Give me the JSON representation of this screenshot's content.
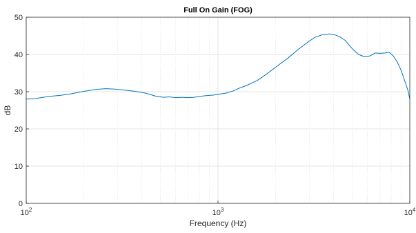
{
  "chart_data": {
    "type": "line",
    "title": "Full On Gain (FOG)",
    "xlabel": "Frequency (Hz)",
    "ylabel": "dB",
    "x_scale": "log",
    "xlim": [
      100,
      10000
    ],
    "ylim": [
      0,
      50
    ],
    "x_ticks": [
      {
        "value": 100,
        "base": "10",
        "exp": "2"
      },
      {
        "value": 1000,
        "base": "10",
        "exp": "3"
      },
      {
        "value": 10000,
        "base": "10",
        "exp": "4"
      }
    ],
    "y_ticks": [
      "0",
      "10",
      "20",
      "30",
      "40",
      "50"
    ],
    "grid": true,
    "series": [
      {
        "color": "#0072BD",
        "x": [
          100,
          110,
          120,
          130,
          150,
          170,
          200,
          230,
          260,
          290,
          330,
          370,
          420,
          480,
          520,
          560,
          600,
          650,
          700,
          750,
          800,
          850,
          900,
          950,
          1000,
          1100,
          1200,
          1300,
          1400,
          1600,
          1800,
          2000,
          2300,
          2600,
          2900,
          3200,
          3500,
          3800,
          4000,
          4300,
          4600,
          5000,
          5400,
          5800,
          6200,
          6600,
          7000,
          7400,
          7800,
          8200,
          8600,
          9000,
          9400,
          9800,
          10000
        ],
        "y": [
          28.0,
          28.1,
          28.4,
          28.7,
          29.0,
          29.4,
          30.1,
          30.6,
          30.8,
          30.7,
          30.4,
          30.1,
          29.6,
          28.7,
          28.5,
          28.6,
          28.4,
          28.5,
          28.4,
          28.5,
          28.7,
          28.9,
          29.0,
          29.1,
          29.3,
          29.6,
          30.2,
          31.0,
          31.6,
          33.0,
          34.8,
          36.6,
          38.9,
          41.2,
          43.1,
          44.6,
          45.3,
          45.5,
          45.4,
          44.8,
          43.8,
          41.6,
          40.0,
          39.4,
          39.6,
          40.4,
          40.3,
          40.4,
          40.6,
          39.6,
          38.0,
          35.8,
          33.0,
          30.2,
          28.0
        ]
      }
    ]
  }
}
